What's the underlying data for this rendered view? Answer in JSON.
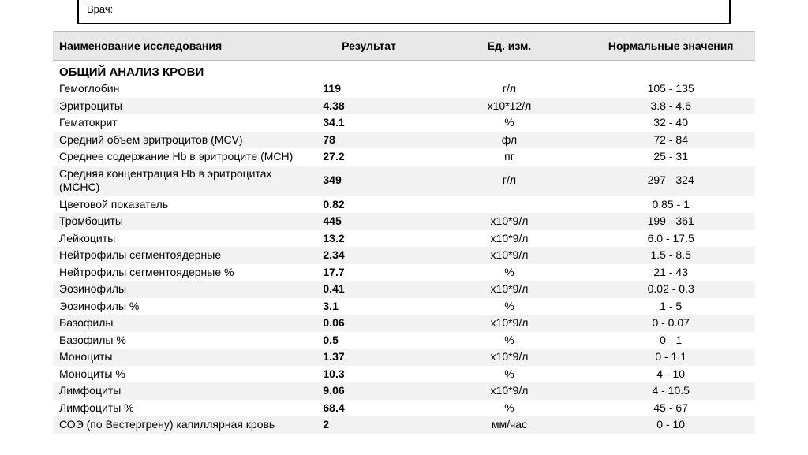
{
  "header": {
    "doctor_label": "Врач:"
  },
  "table": {
    "columns": {
      "name": "Наименование исследования",
      "result": "Результат",
      "unit": "Ед. изм.",
      "range": "Нормальные значения"
    },
    "section_title": "ОБЩИЙ АНАЛИЗ КРОВИ",
    "rows": [
      {
        "name": "Гемоглобин",
        "result": "119",
        "unit": "г/л",
        "range": "105 - 135"
      },
      {
        "name": "Эритроциты",
        "result": "4.38",
        "unit": "х10*12/л",
        "range": "3.8 - 4.6"
      },
      {
        "name": "Гематокрит",
        "result": "34.1",
        "unit": "%",
        "range": "32 - 40"
      },
      {
        "name": "Средний объем эритроцитов (MCV)",
        "result": "78",
        "unit": "фл",
        "range": "72 - 84"
      },
      {
        "name": "Среднее содержание Hb в эритроците (MCH)",
        "result": "27.2",
        "unit": "пг",
        "range": "25 - 31"
      },
      {
        "name": "Средняя концентрация Hb в эритроцитах (MCHC)",
        "result": "349",
        "unit": "г/л",
        "range": "297 - 324"
      },
      {
        "name": "Цветовой показатель",
        "result": "0.82",
        "unit": "",
        "range": "0.85 - 1"
      },
      {
        "name": "Тромбоциты",
        "result": "445",
        "unit": "х10*9/л",
        "range": "199 - 361"
      },
      {
        "name": "Лейкоциты",
        "result": "13.2",
        "unit": "х10*9/л",
        "range": "6.0 - 17.5"
      },
      {
        "name": "Нейтрофилы сегментоядерные",
        "result": "2.34",
        "unit": "х10*9/л",
        "range": "1.5 - 8.5"
      },
      {
        "name": "Нейтрофилы сегментоядерные %",
        "result": "17.7",
        "unit": "%",
        "range": "21 - 43"
      },
      {
        "name": "Эозинофилы",
        "result": "0.41",
        "unit": "х10*9/л",
        "range": "0.02 - 0.3"
      },
      {
        "name": "Эозинофилы %",
        "result": "3.1",
        "unit": "%",
        "range": "1 - 5"
      },
      {
        "name": "Базофилы",
        "result": "0.06",
        "unit": "х10*9/л",
        "range": "0 - 0.07"
      },
      {
        "name": "Базофилы %",
        "result": "0.5",
        "unit": "%",
        "range": "0 - 1"
      },
      {
        "name": "Моноциты",
        "result": "1.37",
        "unit": "х10*9/л",
        "range": "0 - 1.1"
      },
      {
        "name": "Моноциты %",
        "result": "10.3",
        "unit": "%",
        "range": "4 - 10"
      },
      {
        "name": "Лимфоциты",
        "result": "9.06",
        "unit": "х10*9/л",
        "range": "4 - 10.5"
      },
      {
        "name": "Лимфоциты %",
        "result": "68.4",
        "unit": "%",
        "range": "45 - 67"
      },
      {
        "name": "СОЭ (по Вестергрену) капиллярная кровь",
        "result": "2",
        "unit": "мм/час",
        "range": "0 - 10"
      }
    ]
  }
}
